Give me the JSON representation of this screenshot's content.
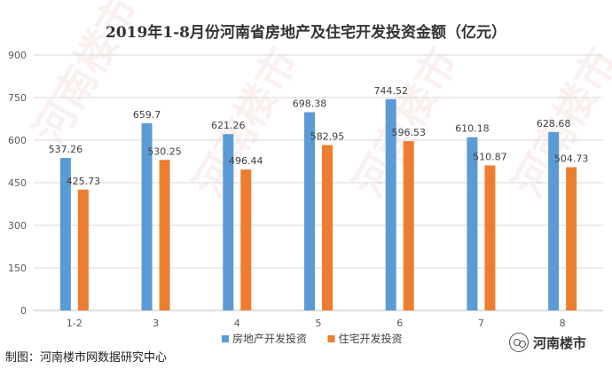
{
  "watermark_text": "河南楼市",
  "footer": {
    "source": "制图：河南楼市网数据研究中心",
    "brand": "河南楼市",
    "brand_icon": "wechat-icon"
  },
  "colors": {
    "series1": "#5b9bd5",
    "series2": "#ed7d31",
    "axis": "#595959",
    "grid": "#d9d9d9"
  },
  "chart_data": {
    "type": "bar",
    "title": "2019年1-8月份河南省房地产及住宅开发投资金额（亿元）",
    "xlabel": "",
    "ylabel": "",
    "categories": [
      "1-2",
      "3",
      "4",
      "5",
      "6",
      "7",
      "8"
    ],
    "ylim": [
      0,
      900
    ],
    "yticks": [
      0,
      150,
      300,
      450,
      600,
      750,
      900
    ],
    "grid": true,
    "legend_position": "bottom",
    "series": [
      {
        "name": "房地产开发投资",
        "values": [
          537.26,
          659.7,
          621.26,
          698.38,
          744.52,
          610.18,
          628.68
        ]
      },
      {
        "name": "住宅开发投资",
        "values": [
          425.73,
          530.25,
          496.44,
          582.95,
          596.53,
          510.87,
          504.73
        ]
      }
    ]
  }
}
